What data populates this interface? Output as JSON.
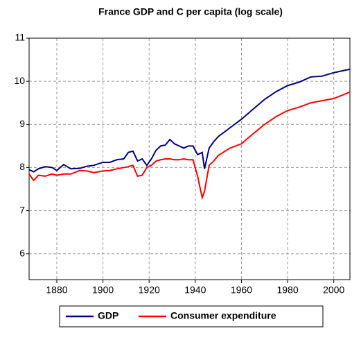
{
  "chart_data": {
    "type": "line",
    "title": "France GDP and C per capita (log scale)",
    "x": [
      1868,
      1870,
      1872,
      1875,
      1878,
      1880,
      1883,
      1886,
      1890,
      1893,
      1896,
      1900,
      1903,
      1906,
      1909,
      1911,
      1913,
      1915,
      1917,
      1919,
      1921,
      1923,
      1925,
      1927,
      1929,
      1931,
      1933,
      1935,
      1937,
      1939,
      1941,
      1943,
      1944,
      1946,
      1948,
      1950,
      1955,
      1960,
      1965,
      1970,
      1975,
      1980,
      1985,
      1990,
      1995,
      2000,
      2007
    ],
    "series": [
      {
        "name": "GDP",
        "color": "#000080",
        "values": [
          7.95,
          7.9,
          7.97,
          8.02,
          8.0,
          7.93,
          8.07,
          7.97,
          7.98,
          8.03,
          8.05,
          8.12,
          8.12,
          8.18,
          8.2,
          8.35,
          8.38,
          8.15,
          8.2,
          8.05,
          8.2,
          8.4,
          8.5,
          8.52,
          8.65,
          8.55,
          8.5,
          8.45,
          8.5,
          8.5,
          8.3,
          8.35,
          7.97,
          8.45,
          8.6,
          8.72,
          8.92,
          9.12,
          9.35,
          9.58,
          9.76,
          9.9,
          9.98,
          10.1,
          10.12,
          10.2,
          10.28
        ]
      },
      {
        "name": "Consumer expenditure",
        "color": "#ff0000",
        "values": [
          7.85,
          7.7,
          7.82,
          7.8,
          7.85,
          7.82,
          7.85,
          7.85,
          7.93,
          7.92,
          7.88,
          7.92,
          7.93,
          7.97,
          8.0,
          8.02,
          8.05,
          7.8,
          7.82,
          8.0,
          8.05,
          8.15,
          8.18,
          8.2,
          8.2,
          8.18,
          8.18,
          8.2,
          8.18,
          8.18,
          7.8,
          7.3,
          7.45,
          8.05,
          8.15,
          8.28,
          8.45,
          8.55,
          8.78,
          9.0,
          9.18,
          9.32,
          9.4,
          9.5,
          9.55,
          9.6,
          9.75
        ]
      }
    ],
    "xlim": [
      1868,
      2007
    ],
    "xticks": [
      1880,
      1900,
      1920,
      1940,
      1960,
      1980,
      2000
    ],
    "ylim": [
      5.4,
      11
    ],
    "yticks": [
      6,
      7,
      8,
      9,
      10,
      11
    ],
    "grid": true,
    "legend": "bottom"
  }
}
